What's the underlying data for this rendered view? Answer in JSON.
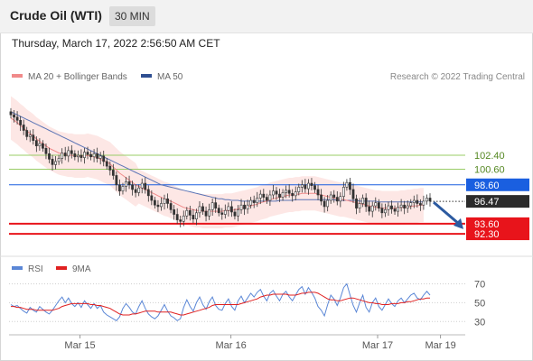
{
  "header": {
    "title": "Crude Oil (WTI)",
    "timeframe": "30 MIN"
  },
  "timestamp": "Thursday, March 17, 2022 2:56:50 AM CET",
  "legend": {
    "ma20": "MA 20 + Bollinger Bands",
    "ma50": "MA 50",
    "rsi": "RSI",
    "ma9": "9MA"
  },
  "credit": "Research © 2022 Trading Central",
  "colors": {
    "candle": "#333333",
    "bollinger_fill": "#fde3e1",
    "ma20": "#f08a8a",
    "ma50": "#5b74b5",
    "resistance": "#99cc66",
    "pivot": "#1a5fe0",
    "support": "#e8141b",
    "last_price": "#2b2b2b",
    "rsi": "#5b87d6",
    "rsi_ma": "#e02020"
  },
  "chart_data": [
    {
      "type": "candlestick",
      "x_labels": [
        "Mar 15",
        "Mar 16",
        "Mar 17",
        "Mar 19"
      ],
      "y_range": [
        90.8,
        109.6
      ],
      "levels": [
        {
          "label": "102.40",
          "value": 102.4,
          "kind": "resistance"
        },
        {
          "label": "100.60",
          "value": 100.6,
          "kind": "resistance"
        },
        {
          "label": "98.60",
          "value": 98.6,
          "kind": "pivot"
        },
        {
          "label": "93.60",
          "value": 93.6,
          "kind": "support"
        },
        {
          "label": "92.30",
          "value": 92.3,
          "kind": "support"
        }
      ],
      "last_price": {
        "label": "96.47",
        "value": 96.47
      },
      "close_series": [
        107.6,
        107.3,
        106.9,
        106.3,
        105.6,
        104.8,
        105.0,
        104.3,
        103.6,
        103.9,
        103.3,
        102.6,
        101.9,
        101.2,
        101.6,
        102.0,
        102.7,
        102.3,
        103.0,
        102.6,
        102.2,
        102.4,
        102.1,
        102.8,
        102.5,
        102.2,
        102.6,
        102.0,
        102.3,
        101.6,
        101.0,
        100.5,
        99.8,
        98.6,
        97.8,
        98.4,
        99.0,
        98.6,
        98.0,
        97.6,
        98.2,
        98.8,
        98.0,
        97.2,
        96.6,
        96.0,
        95.8,
        96.2,
        96.8,
        96.2,
        95.4,
        94.8,
        94.1,
        93.9,
        94.6,
        95.3,
        94.7,
        94.2,
        95.0,
        95.8,
        95.2,
        94.6,
        95.4,
        96.3,
        95.6,
        95.0,
        94.8,
        95.3,
        95.8,
        95.1,
        94.6,
        95.4,
        96.0,
        95.5,
        96.0,
        96.6,
        96.3,
        96.9,
        97.4,
        97.0,
        96.6,
        97.3,
        97.8,
        97.4,
        97.0,
        97.6,
        97.9,
        97.5,
        97.2,
        97.7,
        98.3,
        98.6,
        98.1,
        98.8,
        98.5,
        98.0,
        97.3,
        96.5,
        95.8,
        96.6,
        97.3,
        97.0,
        96.5,
        97.1,
        98.3,
        98.9,
        98.0,
        96.8,
        95.6,
        96.2,
        96.9,
        95.8,
        95.2,
        95.9,
        96.3,
        95.6,
        95.0,
        95.4,
        95.9,
        95.5,
        95.2,
        95.7,
        96.0,
        95.6,
        95.9,
        96.3,
        96.6,
        96.2,
        96.0,
        96.5,
        96.9,
        96.5
      ],
      "ma20_series": [
        107.2,
        106.9,
        106.6,
        106.2,
        105.9,
        105.5,
        105.2,
        104.9,
        104.5,
        104.2,
        103.9,
        103.6,
        103.3,
        103.1,
        102.9,
        102.7,
        102.6,
        102.5,
        102.4,
        102.4,
        102.3,
        102.3,
        102.3,
        102.3,
        102.4,
        102.3,
        102.2,
        102.1,
        101.9,
        101.7,
        101.5,
        101.3,
        100.9,
        100.5,
        100.1,
        99.8,
        99.5,
        99.2,
        98.9,
        98.6,
        98.4,
        98.2,
        98.0,
        97.8,
        97.6,
        97.4,
        97.2,
        97.0,
        96.8,
        96.7,
        96.5,
        96.3,
        96.1,
        95.9,
        95.7,
        95.6,
        95.5,
        95.4,
        95.3,
        95.3,
        95.2,
        95.2,
        95.2,
        95.2,
        95.2,
        95.2,
        95.2,
        95.3,
        95.3,
        95.3,
        95.4,
        95.5,
        95.6,
        95.7,
        95.8,
        95.9,
        96.0,
        96.1,
        96.3,
        96.4,
        96.5,
        96.7,
        96.8,
        96.9,
        97.0,
        97.1,
        97.2,
        97.3,
        97.3,
        97.4,
        97.4,
        97.5,
        97.5,
        97.5,
        97.5,
        97.5,
        97.4,
        97.3,
        97.2,
        97.1,
        97.0,
        96.9,
        96.8,
        96.7,
        96.7,
        96.6,
        96.5,
        96.4,
        96.3,
        96.2,
        96.1,
        96.0,
        95.9,
        95.8,
        95.7,
        95.7,
        95.6,
        95.6,
        95.6,
        95.6,
        95.6,
        95.6,
        95.7,
        95.7,
        95.8,
        95.8,
        95.9,
        95.9,
        96.0,
        96.0
      ],
      "ma50_series": [
        108.0,
        107.8,
        107.6,
        107.4,
        107.2,
        107.0,
        106.8,
        106.6,
        106.4,
        106.2,
        106.0,
        105.8,
        105.6,
        105.4,
        105.2,
        105.0,
        104.8,
        104.6,
        104.4,
        104.2,
        104.0,
        103.8,
        103.6,
        103.4,
        103.2,
        103.0,
        102.8,
        102.6,
        102.4,
        102.2,
        102.0,
        101.8,
        101.6,
        101.4,
        101.2,
        101.0,
        100.8,
        100.6,
        100.4,
        100.2,
        100.0,
        99.8,
        99.6,
        99.4,
        99.2,
        99.0,
        98.8,
        98.6,
        98.5,
        98.4,
        98.3,
        98.2,
        98.1,
        98.0,
        97.9,
        97.8,
        97.7,
        97.6,
        97.5,
        97.4,
        97.3,
        97.2,
        97.1,
        97.0,
        96.9,
        96.8,
        96.8,
        96.7,
        96.7,
        96.6,
        96.6,
        96.6,
        96.5,
        96.5,
        96.5,
        96.5,
        96.5,
        96.5,
        96.5,
        96.5,
        96.5,
        96.5,
        96.5,
        96.5,
        96.6,
        96.6,
        96.6,
        96.6,
        96.6,
        96.7,
        96.7,
        96.7,
        96.7,
        96.7,
        96.7,
        96.7,
        96.7,
        96.7,
        96.7,
        96.7,
        96.7,
        96.7,
        96.6,
        96.6,
        96.6,
        96.6,
        96.6,
        96.6,
        96.6,
        96.5,
        96.5,
        96.5,
        96.5,
        96.5,
        96.5,
        96.4,
        96.4,
        96.4,
        96.4,
        96.4,
        96.4,
        96.4,
        96.4,
        96.4,
        96.4,
        96.4,
        96.4,
        96.4,
        96.4,
        96.4
      ]
    },
    {
      "type": "line",
      "y_labels": [
        "70",
        "50",
        "30"
      ],
      "y_ticks": [
        70,
        50,
        30
      ],
      "y_range": [
        15,
        80
      ],
      "rsi_series": [
        48,
        46,
        47,
        44,
        41,
        39,
        45,
        42,
        40,
        46,
        43,
        40,
        38,
        42,
        47,
        52,
        56,
        50,
        55,
        49,
        46,
        50,
        45,
        52,
        48,
        44,
        49,
        44,
        47,
        40,
        37,
        35,
        33,
        31,
        35,
        44,
        49,
        45,
        40,
        38,
        46,
        52,
        44,
        38,
        35,
        33,
        36,
        42,
        48,
        41,
        36,
        34,
        31,
        33,
        45,
        53,
        46,
        41,
        50,
        56,
        48,
        43,
        51,
        56,
        47,
        43,
        42,
        49,
        54,
        46,
        42,
        52,
        57,
        50,
        55,
        60,
        56,
        61,
        64,
        57,
        52,
        60,
        63,
        57,
        52,
        59,
        62,
        56,
        52,
        58,
        64,
        67,
        59,
        66,
        61,
        55,
        46,
        42,
        36,
        48,
        58,
        54,
        47,
        55,
        66,
        70,
        58,
        47,
        40,
        50,
        58,
        45,
        40,
        50,
        55,
        46,
        42,
        48,
        54,
        49,
        46,
        52,
        55,
        50,
        54,
        58,
        60,
        55,
        53,
        58,
        62,
        58
      ],
      "rsi_ma_series": [
        46,
        46,
        45,
        45,
        44,
        43,
        43,
        43,
        42,
        42,
        42,
        42,
        42,
        42,
        43,
        44,
        46,
        47,
        48,
        49,
        49,
        49,
        49,
        49,
        49,
        48,
        48,
        47,
        47,
        46,
        45,
        44,
        42,
        40,
        38,
        37,
        37,
        37,
        38,
        38,
        39,
        40,
        41,
        41,
        41,
        41,
        40,
        40,
        40,
        40,
        40,
        39,
        38,
        37,
        37,
        38,
        39,
        40,
        41,
        42,
        43,
        44,
        45,
        47,
        48,
        48,
        48,
        48,
        48,
        48,
        48,
        48,
        49,
        50,
        51,
        52,
        53,
        54,
        56,
        57,
        58,
        58,
        59,
        59,
        59,
        59,
        59,
        58,
        58,
        58,
        59,
        60,
        60,
        61,
        61,
        61,
        60,
        58,
        56,
        54,
        53,
        53,
        52,
        52,
        53,
        54,
        55,
        55,
        54,
        53,
        52,
        51,
        50,
        50,
        49,
        49,
        48,
        48,
        48,
        49,
        49,
        49,
        50,
        50,
        51,
        51,
        52,
        53,
        54,
        54,
        55,
        55
      ]
    }
  ]
}
